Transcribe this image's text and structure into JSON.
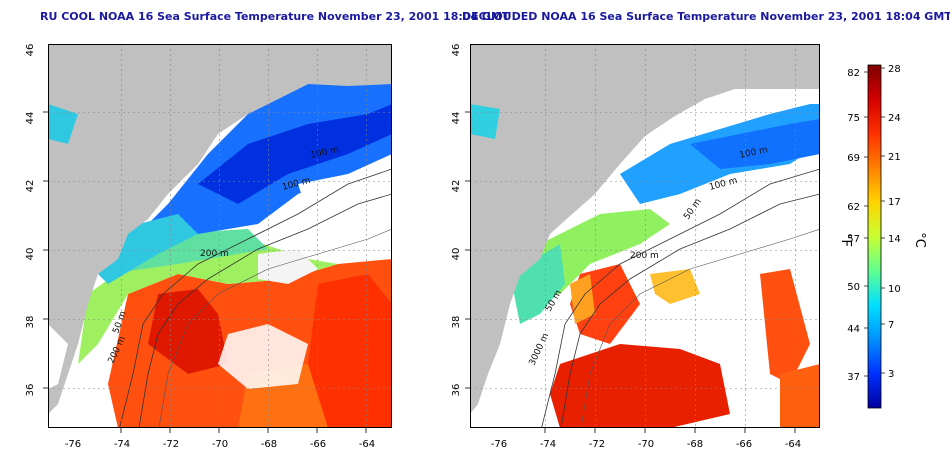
{
  "titles": {
    "left": "RU COOL NOAA 16 Sea Surface Temperature November 23, 2001 18:04 GMT",
    "right": "DECLOUDED NOAA 16 Sea Surface Temperature November 23, 2001 18:04 GMT"
  },
  "axes": {
    "x_ticks": [
      "-76",
      "-74",
      "-72",
      "-70",
      "-68",
      "-66",
      "-64"
    ],
    "y_ticks": [
      "46",
      "44",
      "42",
      "40",
      "38",
      "36"
    ]
  },
  "contour_labels": {
    "left": [
      "100 m",
      "100 m",
      "200 m",
      "50 m",
      "200 m"
    ],
    "right": [
      "100 m",
      "100 m",
      "50 m",
      "200 m",
      "50 m",
      "3000 m"
    ]
  },
  "colorbar": {
    "fahrenheit_ticks": [
      "82",
      "75",
      "69",
      "62",
      "57",
      "50",
      "44",
      "37"
    ],
    "celsius_ticks": [
      "28",
      "24",
      "21",
      "17",
      "14",
      "10",
      "7",
      "3"
    ],
    "fahrenheit_unit": "°F",
    "celsius_unit": "°C",
    "colors": [
      "#7f0000",
      "#d40000",
      "#ff3000",
      "#ff8000",
      "#ffd400",
      "#c8ff30",
      "#60ff90",
      "#00e0ff",
      "#0090ff",
      "#0030ff",
      "#0000a0"
    ]
  },
  "colors": {
    "land": "#c0c0c0",
    "title": "#1a1aa0",
    "cloud": "#ffffff"
  }
}
